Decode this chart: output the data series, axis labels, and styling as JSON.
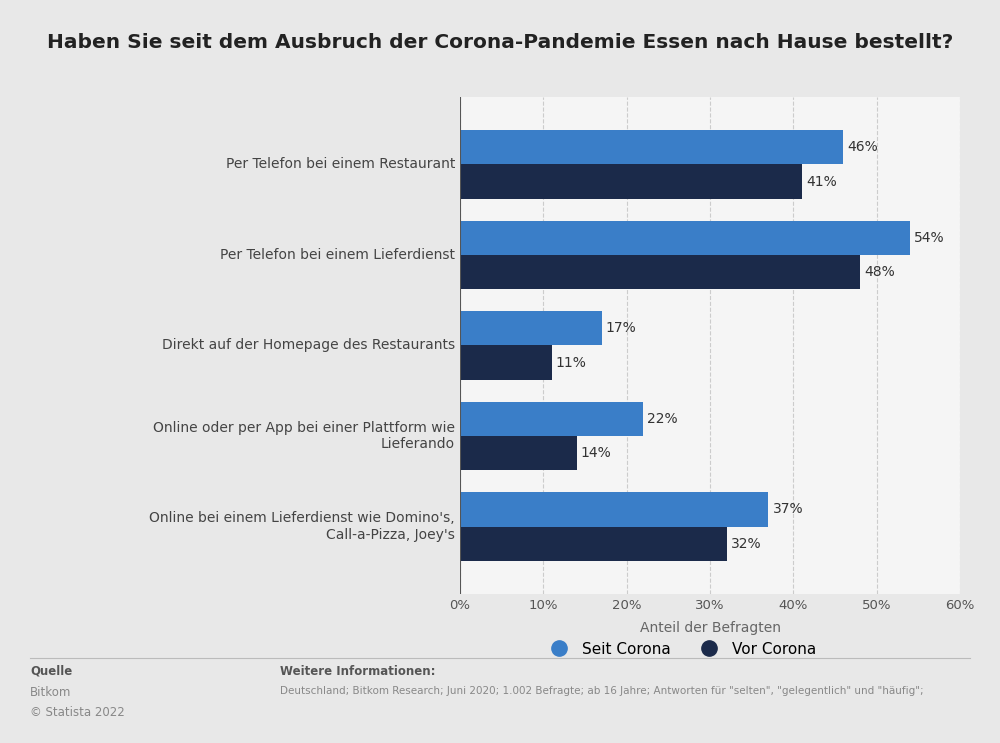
{
  "title": "Haben Sie seit dem Ausbruch der Corona-Pandemie Essen nach Hause bestellt?",
  "categories": [
    "Online bei einem Lieferdienst wie Domino's,\nCall-a-Pizza, Joey's",
    "Online oder per App bei einer Plattform wie\nLieferando",
    "Direkt auf der Homepage des Restaurants",
    "Per Telefon bei einem Lieferdienst",
    "Per Telefon bei einem Restaurant"
  ],
  "vor_corona": [
    32,
    14,
    11,
    48,
    41
  ],
  "seit_corona": [
    37,
    22,
    17,
    54,
    46
  ],
  "color_vor": "#1b2a4a",
  "color_seit": "#3a7ec8",
  "xlabel": "Anteil der Befragten",
  "xlim": [
    0,
    60
  ],
  "xticks": [
    0,
    10,
    20,
    30,
    40,
    50,
    60
  ],
  "legend_seit": "Seit Corona",
  "legend_vor": "Vor Corona",
  "background_color": "#e8e8e8",
  "plot_background": "#f5f5f5",
  "title_fontsize": 14.5,
  "label_fontsize": 10,
  "tick_fontsize": 9.5,
  "bar_height": 0.38,
  "source_label": "Quelle",
  "source_value": "Bitkom",
  "copyright": "© Statista 2022",
  "info_label": "Weitere Informationen:",
  "info_value": "Deutschland; Bitkom Research; Juni 2020; 1.002 Befragte; ab 16 Jahre; Antworten für \"selten\", \"gelegentlich\" und \"häufig\";"
}
